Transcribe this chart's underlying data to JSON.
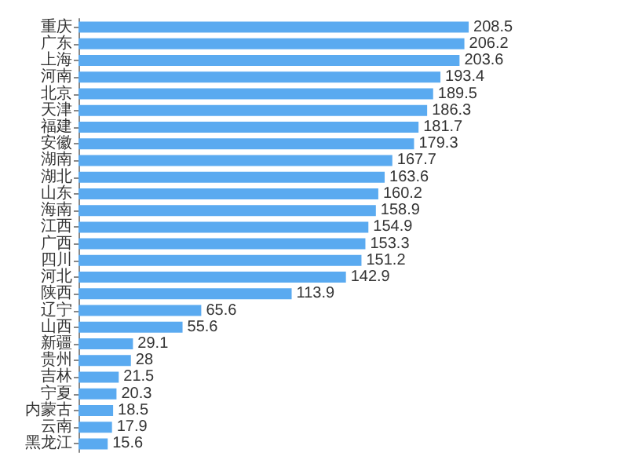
{
  "chart_data": {
    "type": "bar",
    "orientation": "horizontal",
    "tick_labels": "y",
    "data_labels": true,
    "color": "#5aaaf0",
    "categories": [
      "重庆",
      "广东",
      "上海",
      "河南",
      "北京",
      "天津",
      "福建",
      "安徽",
      "湖南",
      "湖北",
      "山东",
      "海南",
      "江西",
      "广西",
      "四川",
      "河北",
      "陕西",
      "辽宁",
      "山西",
      "新疆",
      "贵州",
      "吉林",
      "宁夏",
      "内蒙古",
      "云南",
      "黑龙江"
    ],
    "values": [
      208.5,
      206.2,
      203.6,
      193.4,
      189.5,
      186.3,
      181.7,
      179.3,
      167.7,
      163.6,
      160.2,
      158.9,
      154.9,
      153.3,
      151.2,
      142.9,
      113.9,
      65.6,
      55.6,
      29.1,
      28,
      21.5,
      20.3,
      18.5,
      17.9,
      15.6
    ]
  }
}
